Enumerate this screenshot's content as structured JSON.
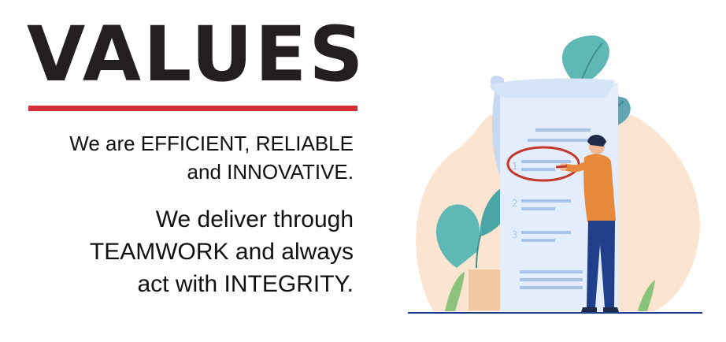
{
  "title": "VALUES",
  "paragraphs": [
    {
      "lines": [
        "We are EFFICIENT, RELIABLE",
        "and INNOVATIVE."
      ]
    },
    {
      "lines": [
        "We deliver through",
        "TEAMWORK and always",
        "act with INTEGRITY."
      ]
    }
  ],
  "illustration": {
    "list_numbers": [
      "1",
      "2",
      "3"
    ],
    "icon": "person-checking-list-illustration"
  },
  "colors": {
    "title": "#231f20",
    "accent_rule": "#d32f38",
    "text": "#111111",
    "blob": "#fbe5d0",
    "paper": "#e3edfb",
    "paper_edge": "#c7d8f3",
    "list_lines": "#a9c3ea",
    "leaf_teal": "#5fb8b5",
    "circle_mark": "#c0392b",
    "shirt": "#e58a3b",
    "pants": "#1f3f8a"
  }
}
